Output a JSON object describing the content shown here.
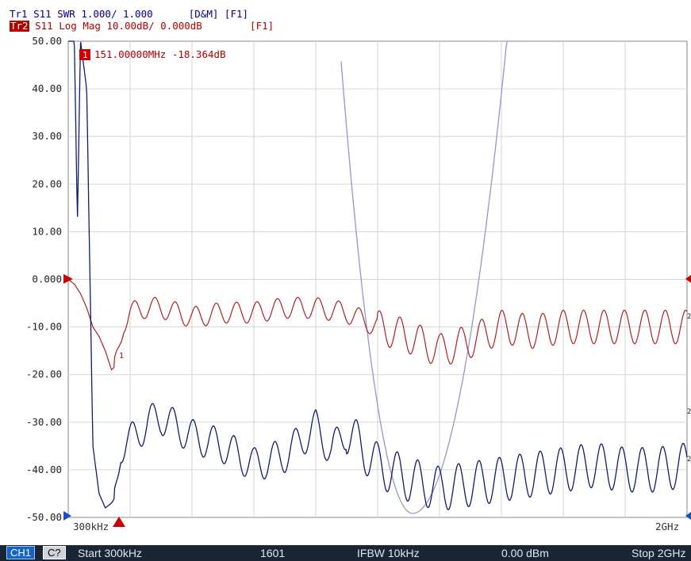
{
  "header": {
    "trace1": {
      "label": "Tr1",
      "text": "S11 SWR 1.000/ 1.000",
      "tags": "[D&M] [F1]"
    },
    "trace2": {
      "label": "Tr2",
      "text": "S11 Log Mag 10.00dB/ 0.000dB",
      "tags": "[F1]"
    }
  },
  "marker": {
    "number": "1",
    "readout": "151.00000MHz -18.364dB"
  },
  "axis": {
    "y_ticks": [
      "50.00",
      "40.00",
      "30.00",
      "20.00",
      "10.00",
      "0.000",
      "-10.00",
      "-20.00",
      "-30.00",
      "-40.00",
      "-50.00"
    ],
    "x_start": "300kHz",
    "x_stop": "2GHz",
    "ref_label": "2"
  },
  "status": {
    "channel": "CH1",
    "cal": "C?",
    "start": "Start 300kHz",
    "points": "1601",
    "ifbw": "IFBW 10kHz",
    "power": "0.00 dBm",
    "stop": "Stop 2GHz"
  },
  "colors": {
    "trace_red": "#b02020",
    "trace_blue": "#101c6e",
    "trace_light": "#8f9ac8",
    "marker_red": "#cc0000",
    "status_bg": "#1a2536"
  },
  "chart_data": {
    "type": "line",
    "x_range": [
      "300kHz",
      "2GHz"
    ],
    "ylim": [
      -50,
      50
    ],
    "grid": true,
    "series": [
      {
        "name": "Tr2 S11 Log Mag",
        "x_mhz": [
          0.3,
          20,
          40,
          60,
          80,
          100,
          120,
          140,
          151,
          165,
          180,
          200,
          250,
          300,
          400,
          500,
          600,
          700,
          800,
          900,
          1000,
          1100,
          1200,
          1300,
          1400,
          1500,
          1600,
          1700,
          1800,
          1900,
          2000
        ],
        "values": [
          0,
          -1,
          -3,
          -6,
          -10,
          -12,
          -15,
          -19,
          -18.364,
          -14,
          -9,
          -7,
          -6,
          -6,
          -8,
          -7,
          -7,
          -6,
          -6,
          -7,
          -10,
          -12,
          -15,
          -13,
          -10,
          -11,
          -10,
          -10,
          -10,
          -10,
          -10
        ]
      },
      {
        "name": "Tr1 S11 SWR",
        "x_mhz": [
          0.3,
          20,
          30,
          40,
          60,
          80,
          100,
          120,
          140,
          150,
          170,
          200,
          260,
          300,
          400,
          500,
          600,
          700,
          750,
          800,
          850,
          900,
          1000,
          1100,
          1200,
          1300,
          1400,
          1500,
          1600,
          1700,
          1800,
          1900,
          2000
        ],
        "values": [
          50,
          50,
          12,
          50,
          40,
          -35,
          -45,
          -48,
          -47,
          -46,
          -35,
          -34,
          -30,
          -29,
          -33,
          -35,
          -39,
          -37,
          -34,
          -31,
          -36,
          -32,
          -39,
          -42,
          -44,
          -43,
          -42,
          -41,
          -40,
          -39,
          -40,
          -40,
          -39
        ]
      }
    ]
  }
}
